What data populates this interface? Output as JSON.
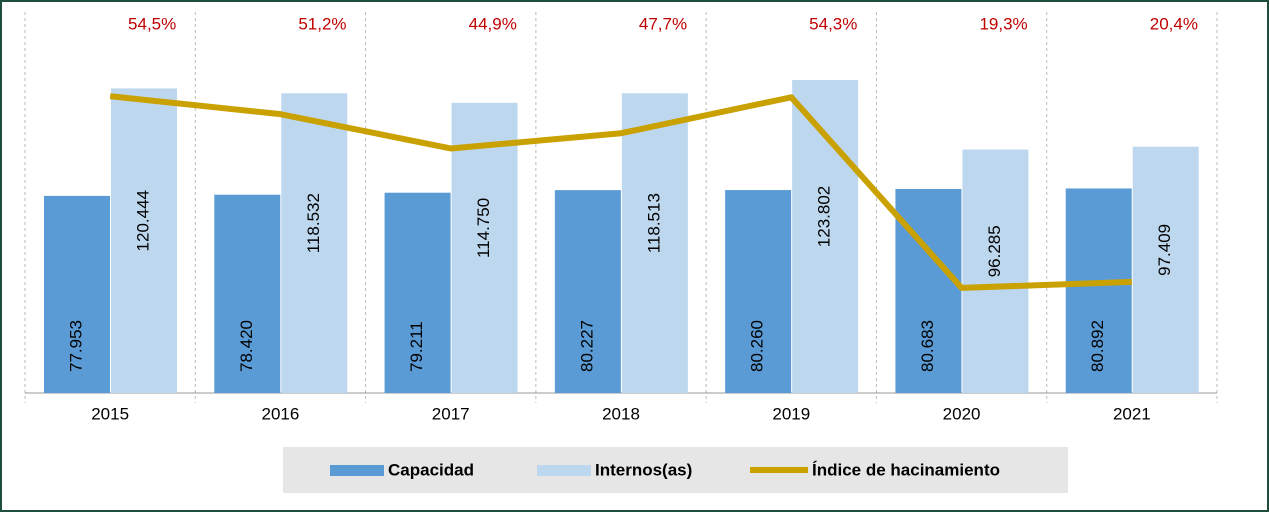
{
  "chart_data": {
    "type": "bar-line",
    "categories": [
      "2015",
      "2016",
      "2017",
      "2018",
      "2019",
      "2020",
      "2021"
    ],
    "series": [
      {
        "name": "Capacidad",
        "type": "bar",
        "color": "#5b9bd5",
        "values": [
          77953,
          78420,
          79211,
          80227,
          80260,
          80683,
          80892
        ],
        "value_labels": [
          "77.953",
          "78.420",
          "79.211",
          "80.227",
          "80.260",
          "80.683",
          "80.892"
        ]
      },
      {
        "name": "Internos(as)",
        "type": "bar",
        "color": "#bdd7ee",
        "values": [
          120444,
          118532,
          114750,
          118513,
          123802,
          96285,
          97409
        ],
        "value_labels": [
          "120.444",
          "118.532",
          "114.750",
          "118.513",
          "123.802",
          "96.285",
          "97.409"
        ]
      },
      {
        "name": "Índice de hacinamiento",
        "type": "line",
        "axis": "y2",
        "color": "#c9a100",
        "label_color": "#c00000",
        "values": [
          54.5,
          51.2,
          44.9,
          47.7,
          54.3,
          19.3,
          20.4
        ],
        "value_labels": [
          "54,5%",
          "51,2%",
          "44,9%",
          "47,7%",
          "54,3%",
          "19,3%",
          "20,4%"
        ]
      }
    ],
    "ylim": [
      0,
      140000
    ],
    "y2lim": [
      0,
      65
    ]
  }
}
